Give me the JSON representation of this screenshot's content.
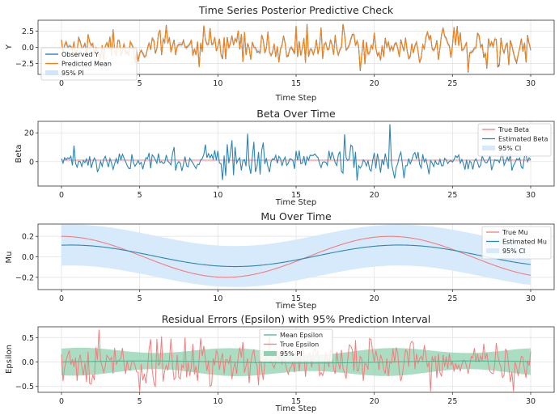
{
  "colors": {
    "observed": "#1f77b4",
    "predicted": "#ff7f0e",
    "pi_band": "#cfe6fb",
    "true_line": "#f47c7c",
    "estimated_line": "#2b86b3",
    "ci_band": "#d7eafb",
    "mean_epsilon": "#52b38f",
    "true_epsilon": "#f47c7c",
    "epsilon_band": "#8fd1ae"
  },
  "chart_data": [
    {
      "type": "line",
      "title": "Time Series Posterior Predictive Check",
      "xlabel": "Time Step",
      "ylabel": "Y",
      "xlim": [
        -1.5,
        31.5
      ],
      "ylim": [
        -4.2,
        4.2
      ],
      "xticks": [
        0,
        5,
        10,
        15,
        20,
        25,
        30
      ],
      "yticks": [
        -2.5,
        0.0,
        2.5
      ],
      "ytick_labels": [
        "−2.5",
        "0.0",
        "2.5"
      ],
      "legend_position": "lower-left",
      "band": {
        "name": "95% PI",
        "level": "±0.35 around observed"
      },
      "series": [
        {
          "name": "Observed Y",
          "description": "noisy, amplitude ~±2, spikes to ~3.5 near t=18 and -3.8 near t=26"
        },
        {
          "name": "Predicted Mean",
          "description": "closely tracks Observed Y"
        }
      ],
      "legend": [
        "Observed Y",
        "Predicted Mean",
        "95% PI"
      ]
    },
    {
      "type": "line",
      "title": "Beta Over Time",
      "xlabel": "Time Step",
      "ylabel": "Beta",
      "xlim": [
        -1.5,
        31.5
      ],
      "ylim": [
        -17,
        28
      ],
      "xticks": [
        0,
        5,
        10,
        15,
        20,
        25,
        30
      ],
      "yticks": [
        0,
        20
      ],
      "ytick_labels": [
        "0",
        "20"
      ],
      "legend_position": "top-right",
      "series": [
        {
          "name": "True Beta",
          "description": "flat near 1"
        },
        {
          "name": "Estimated Beta",
          "description": "noisy around 0, range ~-14 to 26, spike ~26 at t≈21"
        }
      ],
      "band": {
        "name": "95% CI"
      },
      "legend": [
        "True Beta",
        "Estimated Beta",
        "95% CI"
      ]
    },
    {
      "type": "line",
      "title": "Mu Over Time",
      "xlabel": "Time Step",
      "ylabel": "Mu",
      "xlim": [
        -1.5,
        31.5
      ],
      "ylim": [
        -0.32,
        0.32
      ],
      "xticks": [
        0,
        5,
        10,
        15,
        20,
        25,
        30
      ],
      "yticks": [
        -0.2,
        0.0,
        0.2
      ],
      "ytick_labels": [
        "−0.2",
        "0.0",
        "0.2"
      ],
      "legend_position": "top-right",
      "series": [
        {
          "name": "True Mu",
          "formula": "0.2·cos(2π·t/21)"
        },
        {
          "name": "Estimated Mu",
          "formula": "0.01 + 0.105·cos(2π·(t−0.6)/21)"
        }
      ],
      "band": {
        "name": "95% CI",
        "formula": "Estimated Mu ± 0.2"
      },
      "legend": [
        "True Mu",
        "Estimated Mu",
        "95% CI"
      ]
    },
    {
      "type": "line",
      "title": "Residual Errors (Epsilon) with 95% Prediction Interval",
      "xlabel": "Time Step",
      "ylabel": "Epsilon",
      "xlim": [
        -1.5,
        31.5
      ],
      "ylim": [
        -0.62,
        0.72
      ],
      "xticks": [
        0,
        5,
        10,
        15,
        20,
        25,
        30
      ],
      "yticks": [
        -0.5,
        0.0,
        0.5
      ],
      "ytick_labels": [
        "−0.5",
        "0.0",
        "0.5"
      ],
      "legend_position": "top-center",
      "series": [
        {
          "name": "Mean Epsilon",
          "formula": "0.02·sin(2π·t/21)"
        },
        {
          "name": "True Epsilon",
          "description": "noisy, range ~-0.6 to 0.65"
        }
      ],
      "band": {
        "name": "95% PI",
        "description": "half-width ~0.17–0.3 oscillating"
      },
      "legend": [
        "Mean Epsilon",
        "True Epsilon",
        "95% PI"
      ]
    }
  ]
}
